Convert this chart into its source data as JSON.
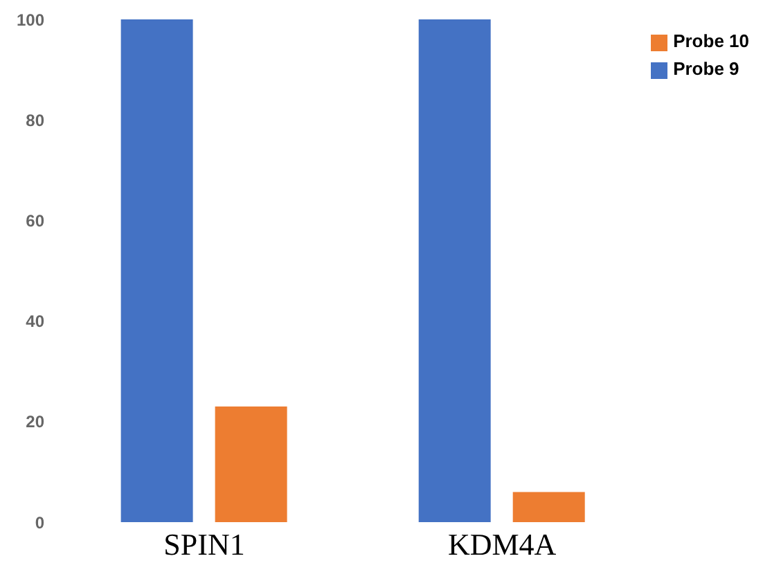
{
  "chart_data": {
    "type": "bar",
    "categories": [
      "SPIN1",
      "KDM4A"
    ],
    "series": [
      {
        "name": "Probe 9",
        "color": "#4472c4",
        "values": [
          100,
          100
        ]
      },
      {
        "name": "Probe 10",
        "color": "#ed7d31",
        "values": [
          23,
          6
        ]
      }
    ],
    "ylim": [
      0,
      100
    ],
    "yticks": [
      0,
      20,
      40,
      60,
      80,
      100
    ],
    "grid": false,
    "legend": "top right"
  }
}
